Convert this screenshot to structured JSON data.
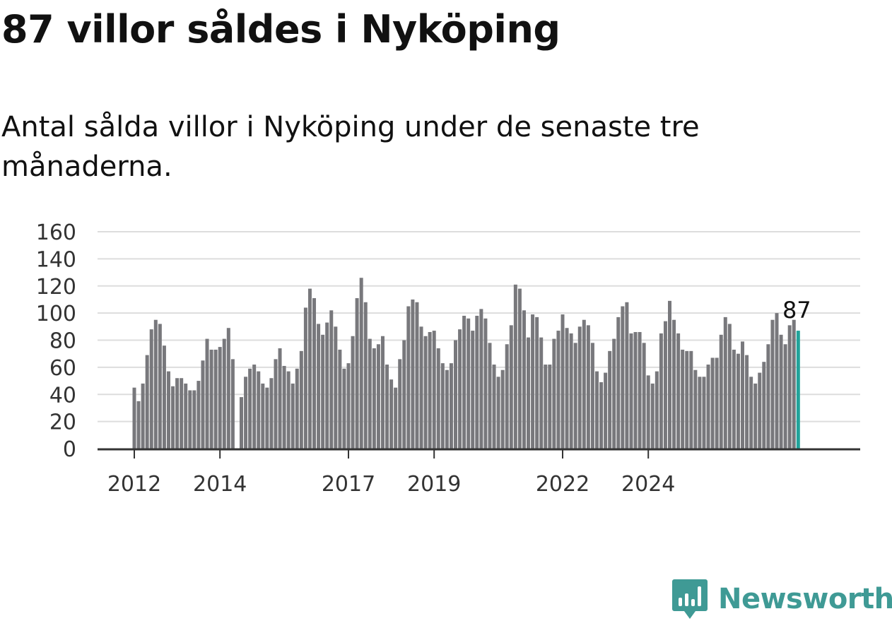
{
  "title": "87 villor såldes i Nyköping",
  "subtitle": "Antal sålda villor i Nyköping under de senaste tre månaderna.",
  "brand": "Newsworthy",
  "colors": {
    "bar": "#78787c",
    "highlight": "#21a39a",
    "grid": "#dddddd",
    "axis": "#333333",
    "brand": "#3f9a95"
  },
  "chart_data": {
    "type": "bar",
    "title": "",
    "xlabel": "",
    "ylabel": "",
    "ylim": [
      0,
      160
    ],
    "yticks": [
      0,
      20,
      40,
      60,
      80,
      100,
      120,
      140,
      160
    ],
    "grid": true,
    "x_tick_labels": [
      {
        "label": "2012",
        "index": 0
      },
      {
        "label": "2014",
        "index": 20
      },
      {
        "label": "2017",
        "index": 50
      },
      {
        "label": "2019",
        "index": 70
      },
      {
        "label": "2022",
        "index": 100
      },
      {
        "label": "2024",
        "index": 120
      }
    ],
    "values": [
      45,
      35,
      48,
      69,
      88,
      95,
      92,
      76,
      57,
      46,
      52,
      52,
      48,
      43,
      43,
      50,
      65,
      81,
      73,
      73,
      75,
      81,
      89,
      66,
      0,
      38,
      53,
      59,
      62,
      57,
      48,
      45,
      52,
      66,
      74,
      61,
      57,
      48,
      59,
      72,
      104,
      118,
      111,
      92,
      84,
      93,
      102,
      90,
      73,
      59,
      63,
      83,
      111,
      126,
      108,
      81,
      74,
      77,
      83,
      62,
      51,
      45,
      66,
      80,
      105,
      110,
      108,
      90,
      83,
      86,
      87,
      74,
      63,
      58,
      63,
      80,
      88,
      98,
      96,
      87,
      98,
      103,
      96,
      78,
      62,
      53,
      58,
      77,
      91,
      121,
      118,
      102,
      82,
      99,
      97,
      82,
      62,
      62,
      81,
      87,
      99,
      89,
      85,
      78,
      90,
      95,
      91,
      78,
      57,
      49,
      56,
      72,
      81,
      97,
      105,
      108,
      85,
      86,
      86,
      78,
      54,
      48,
      57,
      85,
      94,
      109,
      95,
      85,
      73,
      72,
      72,
      58,
      53,
      53,
      62,
      67,
      67,
      84,
      97,
      92,
      73,
      70,
      79,
      69,
      53,
      48,
      56,
      64,
      77,
      95,
      100,
      84,
      77,
      91,
      95,
      87
    ],
    "highlight_index": 155,
    "highlight_label": "87"
  }
}
